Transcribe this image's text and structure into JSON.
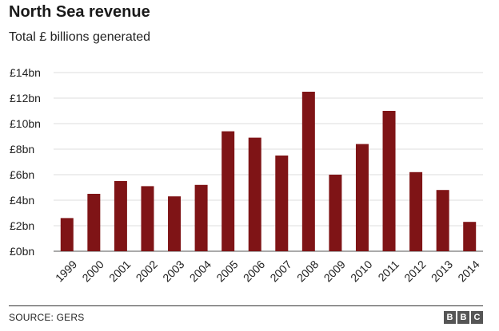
{
  "header": {
    "title": "North Sea revenue",
    "subtitle": "Total £ billions generated"
  },
  "footer": {
    "source": "SOURCE: GERS",
    "logo_letters": [
      "B",
      "B",
      "C"
    ]
  },
  "chart_data": {
    "type": "bar",
    "title": "North Sea revenue",
    "subtitle": "Total £ billions generated",
    "categories": [
      "1999",
      "2000",
      "2001",
      "2002",
      "2003",
      "2004",
      "2005",
      "2006",
      "2007",
      "2008",
      "2009",
      "2010",
      "2011",
      "2012",
      "2013",
      "2014"
    ],
    "values": [
      2.6,
      4.5,
      5.5,
      5.1,
      4.3,
      5.2,
      9.4,
      8.9,
      7.5,
      12.5,
      6.0,
      8.4,
      11.0,
      6.2,
      4.8,
      2.3
    ],
    "ylim": [
      0,
      14
    ],
    "yticks": [
      0,
      2,
      4,
      6,
      8,
      10,
      12,
      14
    ],
    "ytick_labels": [
      "£0bn",
      "£2bn",
      "£4bn",
      "£6bn",
      "£8bn",
      "£10bn",
      "£12bn",
      "£14bn"
    ],
    "xlabel": "",
    "ylabel": "",
    "grid": true,
    "bar_color": "#7f1416",
    "grid_color": "#dcdcdc"
  }
}
